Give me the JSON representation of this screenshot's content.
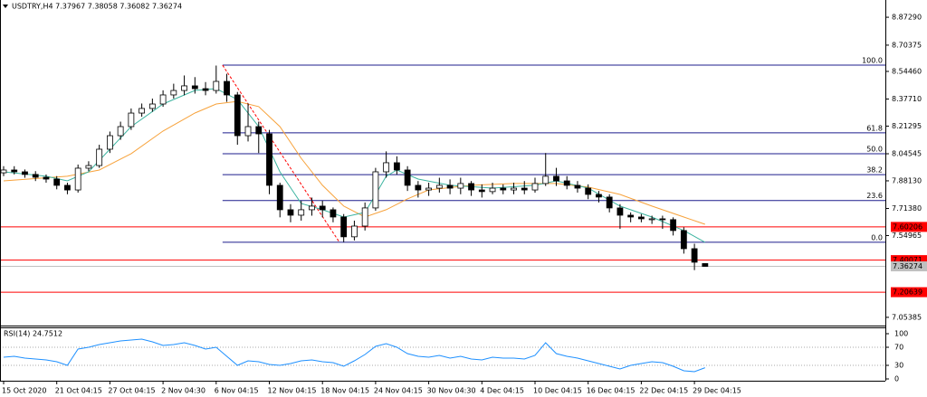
{
  "chart_data": [
    {
      "type": "candlestick",
      "title": "USDTRY,H4 7.37967 7.38058 7.36082 7.36274",
      "categories": [
        "15 Oct 2020",
        null,
        null,
        null,
        null,
        "21 Oct 04:15",
        null,
        null,
        null,
        null,
        "27 Oct 04:15",
        null,
        null,
        null,
        null,
        "2 Nov 04:30",
        null,
        null,
        null,
        null,
        "6 Nov 04:15",
        null,
        null,
        null,
        null,
        "12 Nov 04:15",
        null,
        null,
        null,
        null,
        "18 Nov 04:15",
        null,
        null,
        null,
        null,
        "24 Nov 04:15",
        null,
        null,
        null,
        null,
        "30 Nov 04:30",
        null,
        null,
        null,
        null,
        "4 Dec 04:15",
        null,
        null,
        null,
        null,
        "10 Dec 04:15",
        null,
        null,
        null,
        null,
        "16 Dec 04:15",
        null,
        null,
        null,
        null,
        "22 Dec 04:15",
        null,
        null,
        null,
        null,
        "29 Dec 04:15",
        null
      ],
      "open": [
        7.93,
        7.947,
        7.936,
        7.92,
        7.903,
        7.892,
        7.854,
        7.826,
        7.958,
        7.974,
        8.073,
        8.155,
        8.21,
        8.292,
        8.32,
        8.347,
        8.402,
        8.429,
        8.457,
        8.44,
        8.429,
        8.484,
        8.402,
        8.155,
        8.21,
        8.166,
        7.854,
        7.706,
        7.673,
        7.706,
        7.728,
        7.706,
        7.662,
        7.542,
        7.607,
        7.717,
        7.936,
        7.991,
        7.947,
        7.854,
        7.826,
        7.837,
        7.854,
        7.837,
        7.865,
        7.826,
        7.816,
        7.837,
        7.826,
        7.837,
        7.826,
        7.865,
        7.909,
        7.881,
        7.854,
        7.837,
        7.799,
        7.783,
        7.717,
        7.673,
        7.662,
        7.651,
        7.651,
        7.646,
        7.58,
        7.47,
        7.37967
      ],
      "high": [
        7.97,
        7.97,
        7.95,
        7.94,
        7.92,
        7.91,
        7.87,
        7.98,
        8.0,
        8.1,
        8.18,
        8.24,
        8.32,
        8.35,
        8.38,
        8.43,
        8.47,
        8.52,
        8.51,
        8.48,
        8.58,
        8.53,
        8.42,
        8.35,
        8.24,
        8.19,
        7.87,
        7.74,
        7.76,
        7.78,
        7.76,
        7.72,
        7.68,
        7.64,
        7.75,
        7.96,
        8.06,
        8.03,
        7.97,
        7.88,
        7.87,
        7.9,
        7.89,
        7.9,
        7.88,
        7.86,
        7.87,
        7.86,
        7.87,
        7.88,
        7.9,
        8.05,
        7.96,
        7.91,
        7.88,
        7.86,
        7.82,
        7.8,
        7.74,
        7.69,
        7.68,
        7.67,
        7.67,
        7.66,
        7.6,
        7.5,
        7.38058
      ],
      "low": [
        7.91,
        7.92,
        7.9,
        7.88,
        7.87,
        7.83,
        7.8,
        7.81,
        7.94,
        7.96,
        8.05,
        8.13,
        8.19,
        8.27,
        8.3,
        8.33,
        8.38,
        8.4,
        8.41,
        8.4,
        8.41,
        8.36,
        8.1,
        8.12,
        8.05,
        7.8,
        7.66,
        7.63,
        7.64,
        7.67,
        7.66,
        7.63,
        7.51,
        7.52,
        7.58,
        7.7,
        7.9,
        7.92,
        7.82,
        7.78,
        7.79,
        7.81,
        7.8,
        7.8,
        7.79,
        7.78,
        7.8,
        7.8,
        7.8,
        7.8,
        7.81,
        7.85,
        7.85,
        7.83,
        7.81,
        7.77,
        7.75,
        7.69,
        7.59,
        7.63,
        7.63,
        7.62,
        7.59,
        7.55,
        7.44,
        7.34,
        7.36082
      ],
      "close": [
        7.947,
        7.936,
        7.92,
        7.903,
        7.892,
        7.854,
        7.826,
        7.958,
        7.974,
        8.073,
        8.155,
        8.21,
        8.292,
        8.32,
        8.347,
        8.402,
        8.429,
        8.457,
        8.44,
        8.429,
        8.484,
        8.402,
        8.155,
        8.21,
        8.166,
        7.854,
        7.706,
        7.673,
        7.706,
        7.728,
        7.706,
        7.662,
        7.542,
        7.607,
        7.717,
        7.936,
        7.991,
        7.947,
        7.854,
        7.826,
        7.837,
        7.854,
        7.837,
        7.865,
        7.826,
        7.816,
        7.837,
        7.826,
        7.837,
        7.826,
        7.865,
        7.909,
        7.881,
        7.854,
        7.837,
        7.799,
        7.783,
        7.717,
        7.673,
        7.662,
        7.651,
        7.651,
        7.646,
        7.58,
        7.47,
        7.388,
        7.36274
      ],
      "up_color": "#ffffff",
      "down_color": "#000000",
      "wick_color": "#000000",
      "ylim": [
        7.004,
        8.961
      ],
      "yticks": [
        {
          "value": 8.8729,
          "label": "8.87290"
        },
        8.70375,
        {
          "value": 8.5446,
          "label": "8.54460"
        },
        {
          "value": 8.3771,
          "label": "8.37710"
        },
        8.21295,
        8.04545,
        {
          "value": 7.8813,
          "label": "7.88130"
        },
        {
          "value": 7.7138,
          "label": "7.71380"
        },
        7.54965,
        7.05385
      ],
      "overlays": [
        {
          "color": "#f7a23b",
          "x": [
            0,
            6,
            9,
            12,
            15,
            18,
            20,
            22,
            24,
            26,
            28,
            30,
            32,
            34,
            36,
            38,
            40,
            44,
            48,
            52,
            55,
            58,
            61,
            64,
            66
          ],
          "values": [
            7.881,
            7.909,
            7.947,
            8.046,
            8.183,
            8.292,
            8.347,
            8.363,
            8.331,
            8.21,
            8.018,
            7.854,
            7.728,
            7.662,
            7.706,
            7.772,
            7.826,
            7.854,
            7.865,
            7.865,
            7.843,
            7.799,
            7.728,
            7.662,
            7.618
          ]
        },
        {
          "color": "#3cb4a0",
          "x": [
            0,
            4,
            6,
            8,
            10,
            12,
            15,
            18,
            20,
            22,
            24,
            26,
            28,
            30,
            32,
            34,
            35,
            36,
            37,
            39,
            42,
            46,
            50,
            52,
            55,
            58,
            61,
            64,
            66
          ],
          "values": [
            7.936,
            7.909,
            7.881,
            7.936,
            8.073,
            8.21,
            8.347,
            8.429,
            8.44,
            8.374,
            8.21,
            7.936,
            7.744,
            7.706,
            7.662,
            7.69,
            7.799,
            7.909,
            7.947,
            7.892,
            7.854,
            7.837,
            7.854,
            7.881,
            7.837,
            7.728,
            7.662,
            7.58,
            7.509
          ]
        }
      ],
      "fibonacci": {
        "color": "#1c1c8c",
        "start_x": 20.6,
        "level_labels": [
          "100.0",
          "61.8",
          "50.0",
          "38.2",
          "23.6",
          "0.0"
        ],
        "prices": [
          8.5825,
          8.1723,
          8.0456,
          7.9189,
          7.7621,
          7.5087
        ]
      },
      "trendline": {
        "color": "#ff0000",
        "x": [
          20.6,
          31.6
        ],
        "values": [
          8.5825,
          7.5087
        ]
      },
      "hlines": {
        "color": "#ff0000",
        "values": [
          7.60206,
          7.40071,
          7.20639
        ]
      },
      "current_price": 7.36274
    },
    {
      "type": "line",
      "title": "RSI(14) 24.7512",
      "color": "#1e90ff",
      "values": [
        48,
        50,
        46,
        44,
        42,
        38,
        30,
        66,
        70,
        76,
        80,
        84,
        86,
        88,
        82,
        74,
        76,
        80,
        74,
        66,
        70,
        50,
        30,
        40,
        38,
        32,
        30,
        34,
        40,
        42,
        38,
        36,
        28,
        40,
        54,
        72,
        78,
        70,
        56,
        50,
        48,
        52,
        46,
        50,
        44,
        42,
        48,
        46,
        46,
        44,
        52,
        80,
        56,
        50,
        46,
        40,
        34,
        28,
        22,
        30,
        34,
        38,
        36,
        28,
        18,
        16,
        24.7512
      ],
      "ylim": [
        -4,
        112
      ],
      "yticks": [
        100,
        70,
        30,
        0
      ],
      "levels": [
        70,
        30
      ]
    }
  ]
}
